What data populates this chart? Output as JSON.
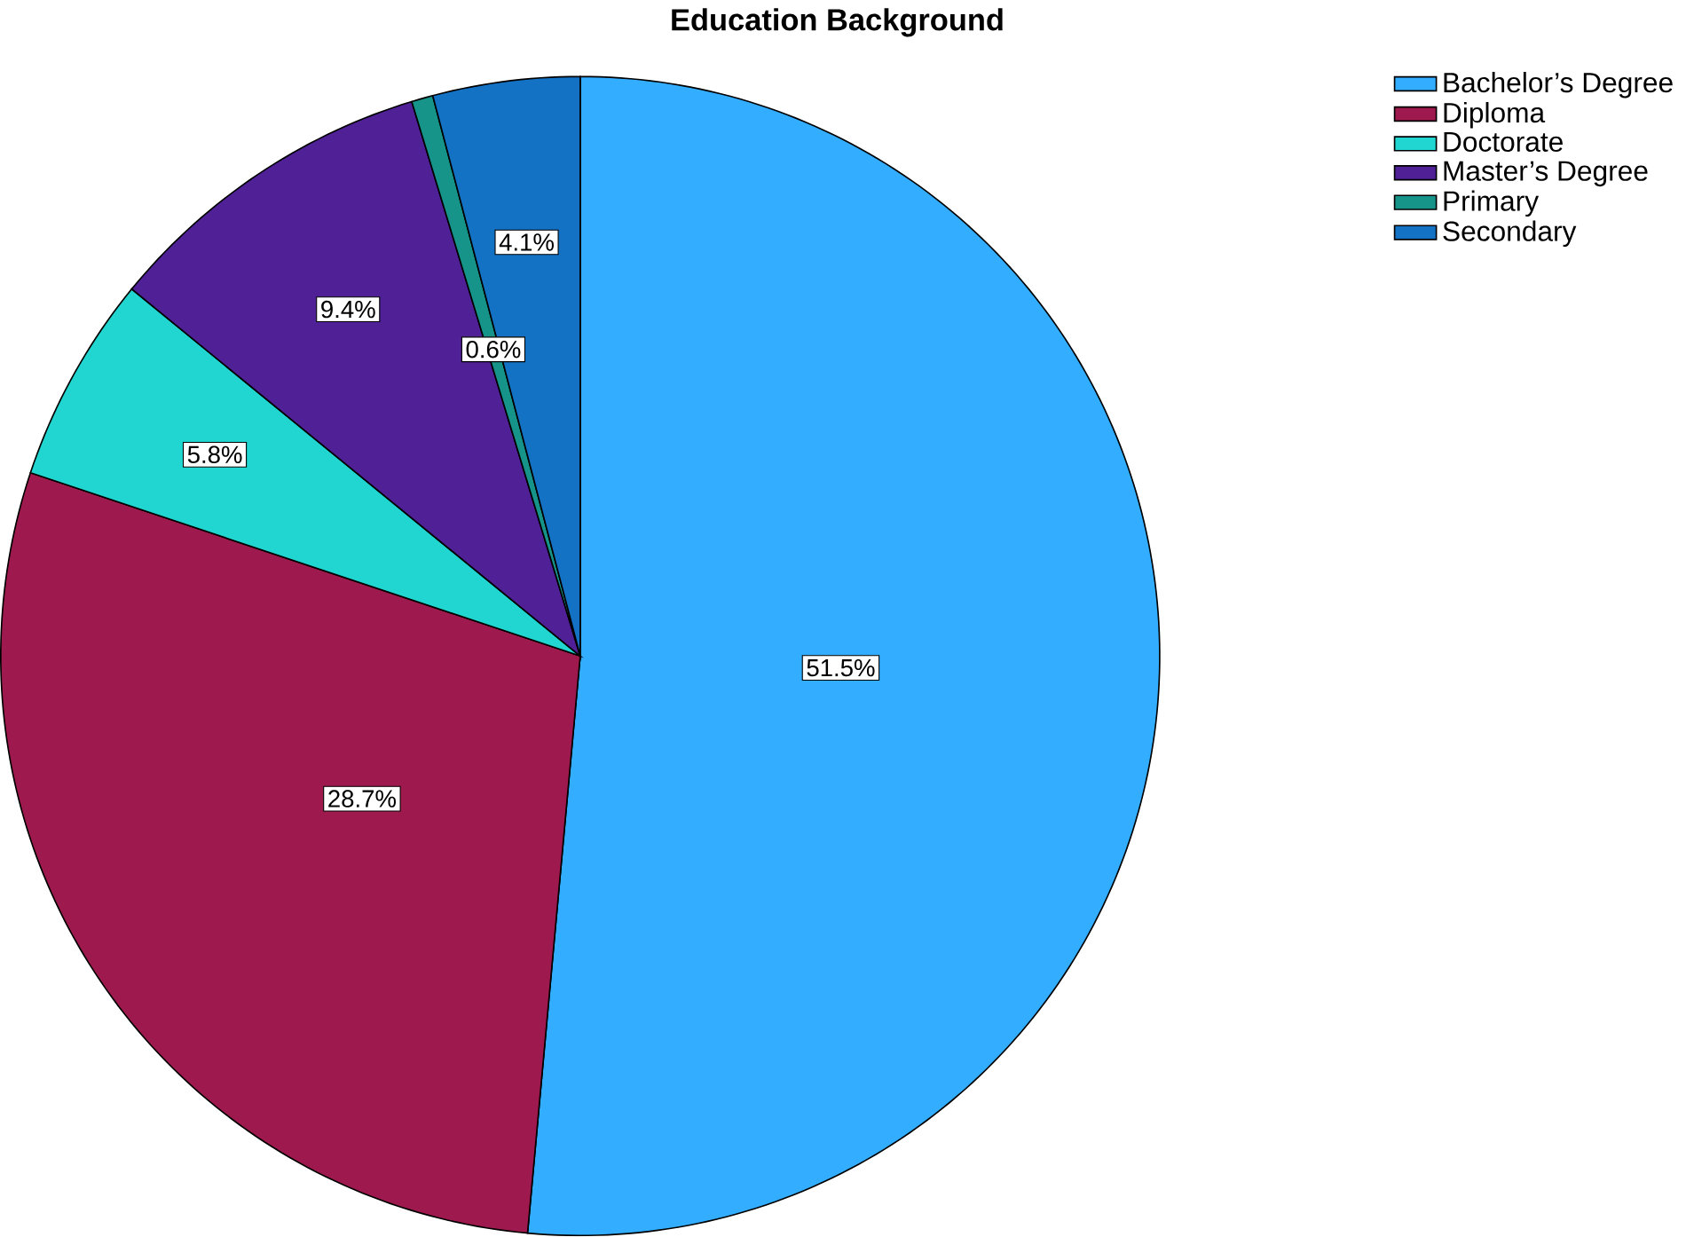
{
  "chart_data": {
    "type": "pie",
    "title": "Education Background",
    "categories": [
      "Bachelor’s Degree",
      "Diploma",
      "Doctorate",
      "Master’s Degree",
      "Primary",
      "Secondary"
    ],
    "values": [
      51.5,
      28.7,
      5.8,
      9.4,
      0.6,
      4.1
    ],
    "colors": [
      "#33adff",
      "#9e1a4e",
      "#21d6d0",
      "#4f2096",
      "#17948a",
      "#1472c4"
    ],
    "value_labels": [
      "51.5%",
      "28.7%",
      "5.8%",
      "9.4%",
      "0.6%",
      "4.1%"
    ],
    "legend": "top right"
  }
}
